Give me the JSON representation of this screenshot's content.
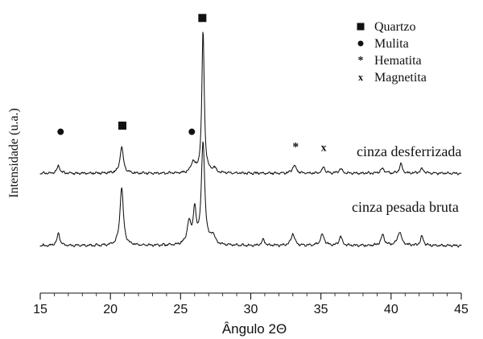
{
  "chart_data": {
    "type": "line",
    "title": "",
    "xlabel": "Ângulo 2Θ",
    "ylabel": "Intensidade (u.a.)",
    "xlim": [
      15,
      45
    ],
    "xticks": [
      15,
      20,
      25,
      30,
      35,
      40,
      45
    ],
    "y_ticks_shown": false,
    "grid": false,
    "legend_position": "top-right",
    "legend": [
      {
        "marker": "square",
        "label": "Quartzo"
      },
      {
        "marker": "circle",
        "label": "Mulita"
      },
      {
        "marker": "asterisk",
        "label": "Hematita"
      },
      {
        "marker": "x",
        "label": "Magnetita"
      }
    ],
    "series": [
      {
        "name": "cinza desferrizada",
        "baseline": 0.47,
        "noise": 0.01,
        "peaks": [
          {
            "x": 16.3,
            "h": 0.05
          },
          {
            "x": 20.8,
            "h": 0.17
          },
          {
            "x": 25.9,
            "h": 0.07
          },
          {
            "x": 26.6,
            "h": 0.93
          },
          {
            "x": 27.4,
            "h": 0.03
          },
          {
            "x": 33.1,
            "h": 0.05
          },
          {
            "x": 35.2,
            "h": 0.04
          },
          {
            "x": 36.4,
            "h": 0.03
          },
          {
            "x": 39.4,
            "h": 0.03
          },
          {
            "x": 40.7,
            "h": 0.06
          },
          {
            "x": 42.2,
            "h": 0.03
          }
        ]
      },
      {
        "name": "cinza pesada bruta",
        "baseline": 0.0,
        "noise": 0.01,
        "peaks": [
          {
            "x": 16.3,
            "h": 0.08
          },
          {
            "x": 20.8,
            "h": 0.38
          },
          {
            "x": 25.6,
            "h": 0.14
          },
          {
            "x": 26.0,
            "h": 0.22
          },
          {
            "x": 26.6,
            "h": 0.66
          },
          {
            "x": 27.3,
            "h": 0.06
          },
          {
            "x": 30.9,
            "h": 0.04
          },
          {
            "x": 33.0,
            "h": 0.08
          },
          {
            "x": 35.1,
            "h": 0.07
          },
          {
            "x": 36.4,
            "h": 0.06
          },
          {
            "x": 39.4,
            "h": 0.07
          },
          {
            "x": 40.6,
            "h": 0.09
          },
          {
            "x": 42.2,
            "h": 0.06
          }
        ]
      }
    ],
    "annotations": [
      {
        "marker": "square",
        "x": 20.85,
        "y": 0.78
      },
      {
        "marker": "circle",
        "x": 16.45,
        "y": 0.74
      },
      {
        "marker": "circle",
        "x": 25.8,
        "y": 0.74
      },
      {
        "marker": "square",
        "x": 26.55,
        "y": 1.48
      },
      {
        "marker": "asterisk",
        "x": 33.2,
        "y": 0.64
      },
      {
        "marker": "x",
        "x": 35.2,
        "y": 0.64
      }
    ]
  }
}
